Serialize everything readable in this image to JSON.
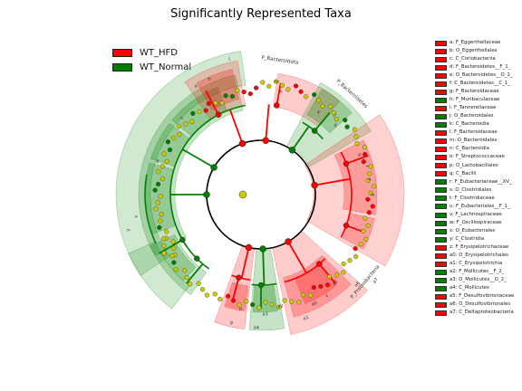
{
  "title": "Significantly Represented Taxa",
  "colors": {
    "wt_hfd": "#ff0000",
    "wt_normal": "#008000",
    "non_significant": "#cccc00",
    "branch": "#000000"
  },
  "groups": [
    {
      "name": "WT_HFD",
      "color": "#ff0000"
    },
    {
      "name": "WT_Normal",
      "color": "#008000"
    }
  ],
  "taxa": [
    {
      "label": "a: F_Eggerthellaceae",
      "group": "WT_HFD"
    },
    {
      "label": "b: O_Eggerthellales",
      "group": "WT_HFD"
    },
    {
      "label": "c: C_Coriobacteriia",
      "group": "WT_HFD"
    },
    {
      "label": "d: F_Bacteroidetes__F_1_",
      "group": "WT_HFD"
    },
    {
      "label": "e: O_Bacteroidetes__O_1_",
      "group": "WT_HFD"
    },
    {
      "label": "f: C_Bacteroidetes__C_1_",
      "group": "WT_HFD"
    },
    {
      "label": "g: F_Bacteroidaceae",
      "group": "WT_HFD"
    },
    {
      "label": "h: F_Muribaculaceae",
      "group": "WT_Normal"
    },
    {
      "label": "i: F_Tannerellaceae",
      "group": "WT_HFD"
    },
    {
      "label": "j: O_Bacteroidales",
      "group": "WT_Normal"
    },
    {
      "label": "k: C_Bacteroidia",
      "group": "WT_Normal"
    },
    {
      "label": "l: F_Bacteroidaceae",
      "group": "WT_HFD"
    },
    {
      "label": "m: O_Bacteroidales",
      "group": "WT_HFD"
    },
    {
      "label": "n: C_Bacteroidia",
      "group": "WT_HFD"
    },
    {
      "label": "o: F_Streptococcaceae",
      "group": "WT_HFD"
    },
    {
      "label": "p: O_Lactobacillales",
      "group": "WT_HFD"
    },
    {
      "label": "q: C_Bacilli",
      "group": "WT_HFD"
    },
    {
      "label": "r: F_Eubacteriaceae__XV_",
      "group": "WT_Normal"
    },
    {
      "label": "s: O_Clostridiales",
      "group": "WT_Normal"
    },
    {
      "label": "t: F_Clostridiaceae",
      "group": "WT_Normal"
    },
    {
      "label": "u: F_Eubacteriales__F_1_",
      "group": "WT_Normal"
    },
    {
      "label": "v: F_Lachnospiraceae",
      "group": "WT_Normal"
    },
    {
      "label": "w: F_Oscillospiraceae",
      "group": "WT_Normal"
    },
    {
      "label": "x: O_Eubacteriales",
      "group": "WT_Normal"
    },
    {
      "label": "y: C_Clostridia",
      "group": "WT_Normal"
    },
    {
      "label": "z: F_Erysipelotrichaceae",
      "group": "WT_HFD"
    },
    {
      "label": "a0: O_Erysipelotrichales",
      "group": "WT_HFD"
    },
    {
      "label": "a1: C_Erysipelotrichia",
      "group": "WT_HFD"
    },
    {
      "label": "a2: F_Mollicutes__F_2_",
      "group": "WT_Normal"
    },
    {
      "label": "a3: O_Mollicutes__O_2_",
      "group": "WT_Normal"
    },
    {
      "label": "a4: C_Mollicutes",
      "group": "WT_Normal"
    },
    {
      "label": "a5: F_Desulfovibrionaceae",
      "group": "WT_HFD"
    },
    {
      "label": "a6: O_Desulfovibrionales",
      "group": "WT_HFD"
    },
    {
      "label": "a7: C_Deltaproteobacteria",
      "group": "WT_HFD"
    }
  ],
  "sector_letters": [
    {
      "text": "a",
      "group": "WT_HFD"
    },
    {
      "text": "b",
      "group": "WT_HFD"
    },
    {
      "text": "c",
      "group": "WT_HFD"
    },
    {
      "text": "m",
      "group": "WT_HFD"
    },
    {
      "text": "n",
      "group": "WT_HFD"
    },
    {
      "text": "k",
      "group": "WT_Normal"
    },
    {
      "text": "j",
      "group": "WT_Normal"
    },
    {
      "text": "h",
      "group": "WT_Normal"
    },
    {
      "text": "g",
      "group": "WT_HFD"
    },
    {
      "text": "f",
      "group": "WT_HFD"
    },
    {
      "text": "e",
      "group": "WT_HFD"
    },
    {
      "text": "d",
      "group": "WT_HFD"
    },
    {
      "text": "z",
      "group": "WT_HFD"
    },
    {
      "text": "a0",
      "group": "WT_HFD"
    },
    {
      "text": "a1",
      "group": "WT_HFD"
    },
    {
      "text": "a2",
      "group": "WT_Normal"
    },
    {
      "text": "a3",
      "group": "WT_Normal"
    },
    {
      "text": "a4",
      "group": "WT_Normal"
    },
    {
      "text": "p",
      "group": "WT_HFD"
    },
    {
      "text": "q",
      "group": "WT_HFD"
    },
    {
      "text": "a7",
      "group": "WT_HFD"
    },
    {
      "text": "a6",
      "group": "WT_HFD"
    },
    {
      "text": "a5",
      "group": "WT_HFD"
    },
    {
      "text": "y",
      "group": "WT_Normal"
    },
    {
      "text": "x",
      "group": "WT_Normal"
    },
    {
      "text": "w",
      "group": "WT_Normal"
    },
    {
      "text": "v",
      "group": "WT_Normal"
    },
    {
      "text": "s",
      "group": "WT_Normal"
    }
  ],
  "clade_labels": [
    "P_Bacteroidota",
    "P_Bacteroidetes",
    "P_Proteobacteria"
  ]
}
